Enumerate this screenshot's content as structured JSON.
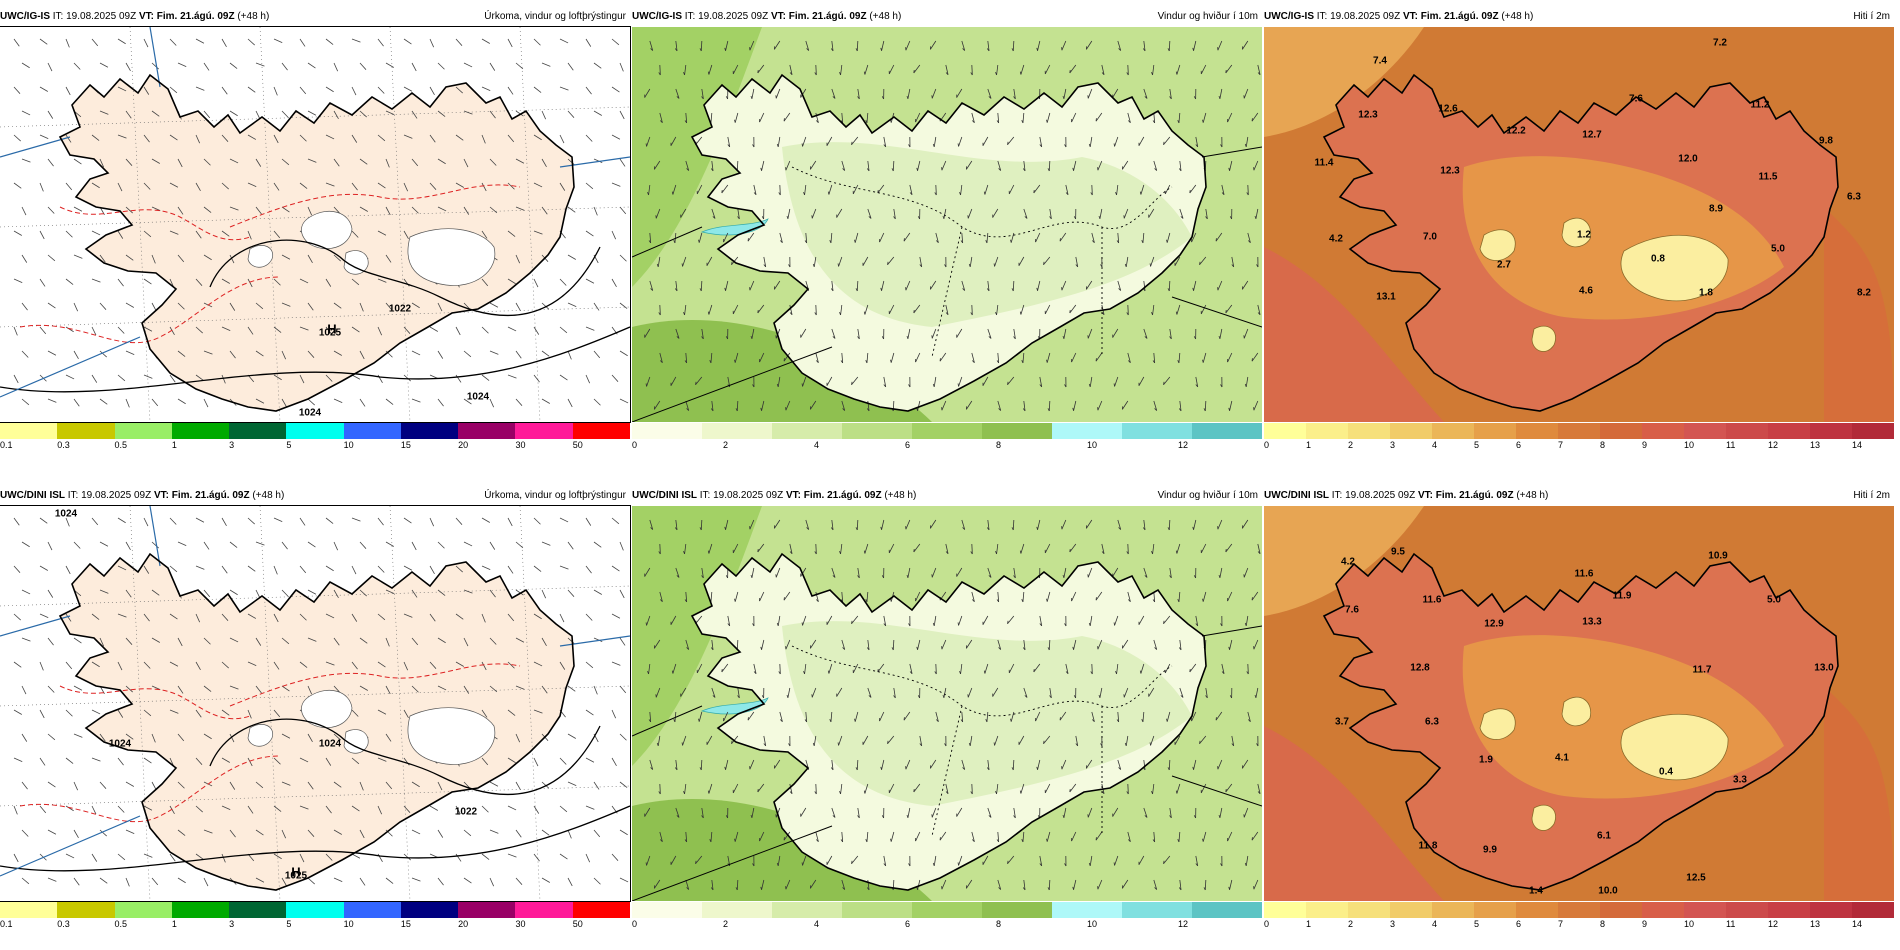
{
  "panels": [
    {
      "model": "UWC/IG-IS",
      "it_label": "IT:",
      "it_value": "19.08.2025 09Z",
      "vt_label": "VT:",
      "vt_value": "Fim. 21.ágú. 09Z",
      "lead": "(+48 h)",
      "title": "Úrkoma, vindur og loftþrýstingur",
      "type": "precip",
      "pressure_labels": [
        {
          "text": "1022"
        },
        {
          "text": "1025"
        },
        {
          "text": "1024"
        },
        {
          "text": "1024"
        }
      ],
      "high_marker": "H"
    },
    {
      "model": "UWC/IG-IS",
      "it_label": "IT:",
      "it_value": "19.08.2025 09Z",
      "vt_label": "VT:",
      "vt_value": "Fim. 21.ágú. 09Z",
      "lead": "(+48 h)",
      "title": "Vindur og hviður í 10m",
      "type": "wind"
    },
    {
      "model": "UWC/IG-IS",
      "it_label": "IT:",
      "it_value": "19.08.2025 09Z",
      "vt_label": "VT:",
      "vt_value": "Fim. 21.ágú. 09Z",
      "lead": "(+48 h)",
      "title": "Hiti í 2m",
      "type": "temp",
      "temps": [
        "7.2",
        "7.4",
        "12.3",
        "12.6",
        "7.6",
        "11.2",
        "12.2",
        "12.7",
        "9.8",
        "11.4",
        "12.3",
        "12.0",
        "11.5",
        "6.3",
        "8.9",
        "4.2",
        "7.0",
        "1.2",
        "5.0",
        "0.8",
        "2.7",
        "4.6",
        "1.8",
        "8.2",
        "13.1"
      ]
    },
    {
      "model": "UWC/DINI ISL",
      "it_label": "IT:",
      "it_value": "19.08.2025 09Z",
      "vt_label": "VT:",
      "vt_value": "Fim. 21.ágú. 09Z",
      "lead": "(+48 h)",
      "title": "Úrkoma, vindur og loftþrýstingur",
      "type": "precip",
      "pressure_labels": [
        {
          "text": "1024"
        },
        {
          "text": "1022"
        },
        {
          "text": "1025"
        },
        {
          "text": "1024"
        },
        {
          "text": "1024"
        }
      ],
      "high_marker": "H"
    },
    {
      "model": "UWC/DINI ISL",
      "it_label": "IT:",
      "it_value": "19.08.2025 09Z",
      "vt_label": "VT:",
      "vt_value": "Fim. 21.ágú. 09Z",
      "lead": "(+48 h)",
      "title": "Vindur og hviður í 10m",
      "type": "wind"
    },
    {
      "model": "UWC/DINI ISL",
      "it_label": "IT:",
      "it_value": "19.08.2025 09Z",
      "vt_label": "VT:",
      "vt_value": "Fim. 21.ágú. 09Z",
      "lead": "(+48 h)",
      "title": "Hiti í 2m",
      "type": "temp",
      "temps": [
        "4.2",
        "9.5",
        "10.9",
        "7.6",
        "11.6",
        "11.6",
        "11.9",
        "5.0",
        "12.9",
        "13.3",
        "12.8",
        "11.7",
        "13.0",
        "3.7",
        "6.3",
        "1.9",
        "4.1",
        "0.4",
        "3.3",
        "6.1",
        "11.8",
        "9.9",
        "12.5",
        "1.4",
        "10.0"
      ]
    }
  ],
  "legends": {
    "precip": {
      "colors": [
        "#ffff99",
        "#c8c800",
        "#99ee66",
        "#00aa00",
        "#006633",
        "#00ffee",
        "#3366ff",
        "#000080",
        "#990066",
        "#ff1a99",
        "#ff0000"
      ],
      "ticks": [
        "0.1",
        "0.3",
        "0.5",
        "1",
        "3",
        "5",
        "10",
        "15",
        "20",
        "30",
        "50"
      ]
    },
    "wind": {
      "colors": [
        "#fbfde8",
        "#eef7cc",
        "#d6ecaa",
        "#bcdf86",
        "#a3d165",
        "#8fc050",
        "#aef8f8",
        "#80e0e0",
        "#5cc4c4"
      ],
      "ticks": [
        "0",
        "2",
        "4",
        "6",
        "8",
        "10",
        "12"
      ]
    },
    "temp": {
      "colors": [
        "#ffff99",
        "#fbef8a",
        "#f6e07b",
        "#f1cc69",
        "#ebb658",
        "#e6a04a",
        "#df8a3d",
        "#d77a3a",
        "#d46a3a",
        "#d85e48",
        "#d35552",
        "#cc4a4a",
        "#c83f45",
        "#be3340",
        "#b22a38"
      ],
      "ticks": [
        "0",
        "1",
        "2",
        "3",
        "4",
        "5",
        "6",
        "7",
        "8",
        "9",
        "10",
        "11",
        "12",
        "13",
        "14"
      ]
    }
  }
}
